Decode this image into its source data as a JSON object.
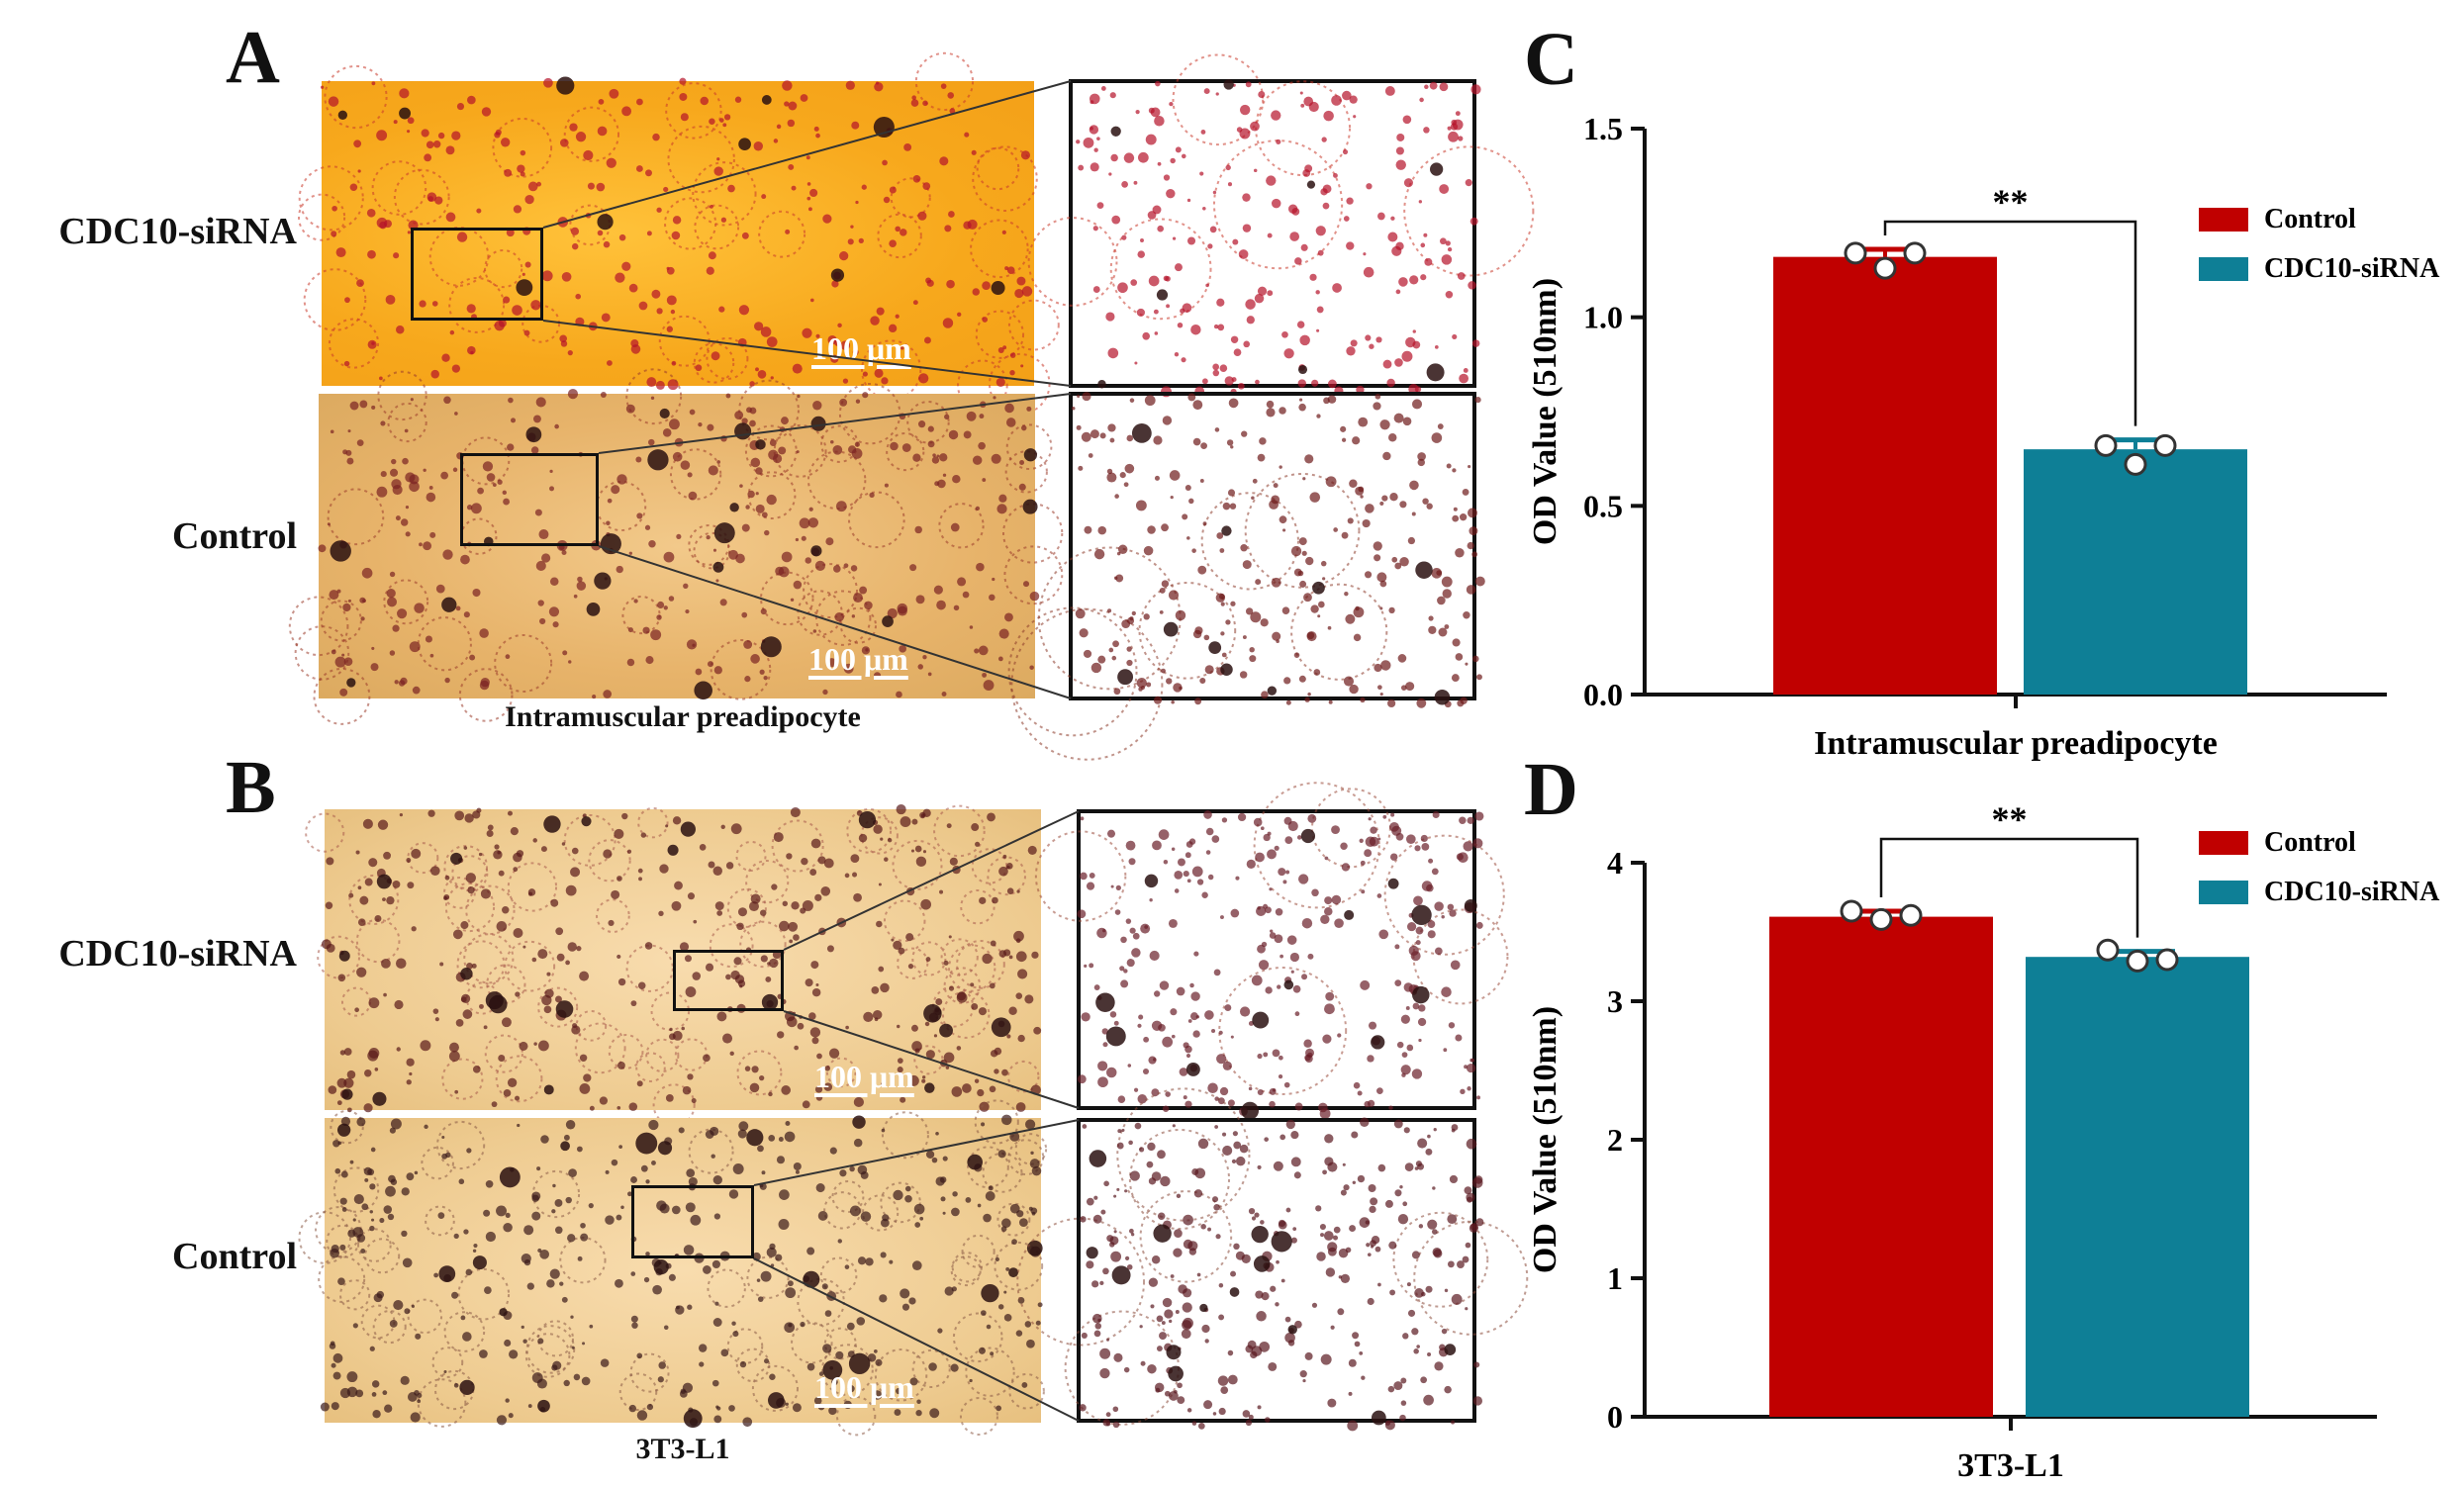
{
  "figure": {
    "panels": {
      "a": {
        "letter": "A",
        "row1_label": "CDC10-siRNA",
        "row2_label": "Control",
        "caption": "Intramuscular preadipocyte",
        "scale_bar": "100 μm"
      },
      "b": {
        "letter": "B",
        "row1_label": "CDC10-siRNA",
        "row2_label": "Control",
        "caption": "3T3-L1",
        "scale_bar": "100 μm"
      },
      "c": {
        "letter": "C"
      },
      "d": {
        "letter": "D"
      }
    },
    "colors": {
      "control": "#c00000",
      "siRNA": "#0e7f96",
      "stain_orange": "#f7a81c",
      "stain_tan": "#e7b36a",
      "lipid_red": "#b5132a"
    }
  },
  "chart_data": [
    {
      "panel": "C",
      "type": "bar",
      "categories": [
        "Intramuscular preadipocyte"
      ],
      "xlabel": "Intramuscular preadipocyte",
      "ylabel": "OD Value (510nm)",
      "ylim": [
        0,
        1.5
      ],
      "yticks": [
        "0.0",
        "0.5",
        "1.0",
        "1.5"
      ],
      "series": [
        {
          "name": "Control",
          "color": "#c00000",
          "value": 1.16,
          "error": 0.02,
          "points": [
            1.17,
            1.13,
            1.17
          ]
        },
        {
          "name": "CDC10-siRNA",
          "color": "#0e7f96",
          "value": 0.65,
          "error": 0.025,
          "points": [
            0.66,
            0.61,
            0.66
          ]
        }
      ],
      "significance": "**",
      "legend": "top-right",
      "grid": false
    },
    {
      "panel": "D",
      "type": "bar",
      "categories": [
        "3T3-L1"
      ],
      "xlabel": "3T3-L1",
      "ylabel": "OD Value (510nm)",
      "ylim": [
        0,
        4
      ],
      "yticks": [
        "0",
        "1",
        "2",
        "3",
        "4"
      ],
      "series": [
        {
          "name": "Control",
          "color": "#c00000",
          "value": 3.61,
          "error": 0.04,
          "points": [
            3.65,
            3.59,
            3.62
          ]
        },
        {
          "name": "CDC10-siRNA",
          "color": "#0e7f96",
          "value": 3.32,
          "error": 0.04,
          "points": [
            3.37,
            3.29,
            3.3
          ]
        }
      ],
      "significance": "**",
      "legend": "top-right",
      "grid": false
    }
  ]
}
